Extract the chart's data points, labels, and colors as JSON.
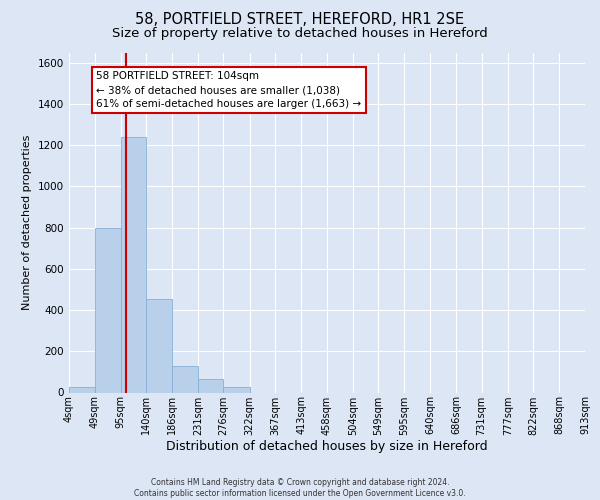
{
  "title": "58, PORTFIELD STREET, HEREFORD, HR1 2SE",
  "subtitle": "Size of property relative to detached houses in Hereford",
  "xlabel": "Distribution of detached houses by size in Hereford",
  "ylabel": "Number of detached properties",
  "footer_line1": "Contains HM Land Registry data © Crown copyright and database right 2024.",
  "footer_line2": "Contains public sector information licensed under the Open Government Licence v3.0.",
  "bin_edges": [
    4,
    49,
    95,
    140,
    186,
    231,
    276,
    322,
    367,
    413,
    458,
    504,
    549,
    595,
    640,
    686,
    731,
    777,
    822,
    868,
    913
  ],
  "bin_labels": [
    "4sqm",
    "49sqm",
    "95sqm",
    "140sqm",
    "186sqm",
    "231sqm",
    "276sqm",
    "322sqm",
    "367sqm",
    "413sqm",
    "458sqm",
    "504sqm",
    "549sqm",
    "595sqm",
    "640sqm",
    "686sqm",
    "731sqm",
    "777sqm",
    "822sqm",
    "868sqm",
    "913sqm"
  ],
  "bar_heights": [
    25,
    800,
    1240,
    455,
    130,
    65,
    25,
    0,
    0,
    0,
    0,
    0,
    0,
    0,
    0,
    0,
    0,
    0,
    0,
    0
  ],
  "bar_color": "#b8d0ea",
  "bar_edgecolor": "#85afd4",
  "property_line_x": 104,
  "vline_color": "#cc0000",
  "annotation_title": "58 PORTFIELD STREET: 104sqm",
  "annotation_line1": "← 38% of detached houses are smaller (1,038)",
  "annotation_line2": "61% of semi-detached houses are larger (1,663) →",
  "annotation_box_facecolor": "#ffffff",
  "annotation_box_edgecolor": "#cc0000",
  "ylim": [
    0,
    1650
  ],
  "yticks": [
    0,
    200,
    400,
    600,
    800,
    1000,
    1200,
    1400,
    1600
  ],
  "background_color": "#dce6f5",
  "plot_bg_color": "#dce6f5",
  "grid_color": "#ffffff",
  "title_fontsize": 10.5,
  "subtitle_fontsize": 9.5,
  "ylabel_fontsize": 8,
  "xlabel_fontsize": 9,
  "tick_fontsize": 7,
  "footer_fontsize": 5.5,
  "annotation_fontsize": 7.5
}
